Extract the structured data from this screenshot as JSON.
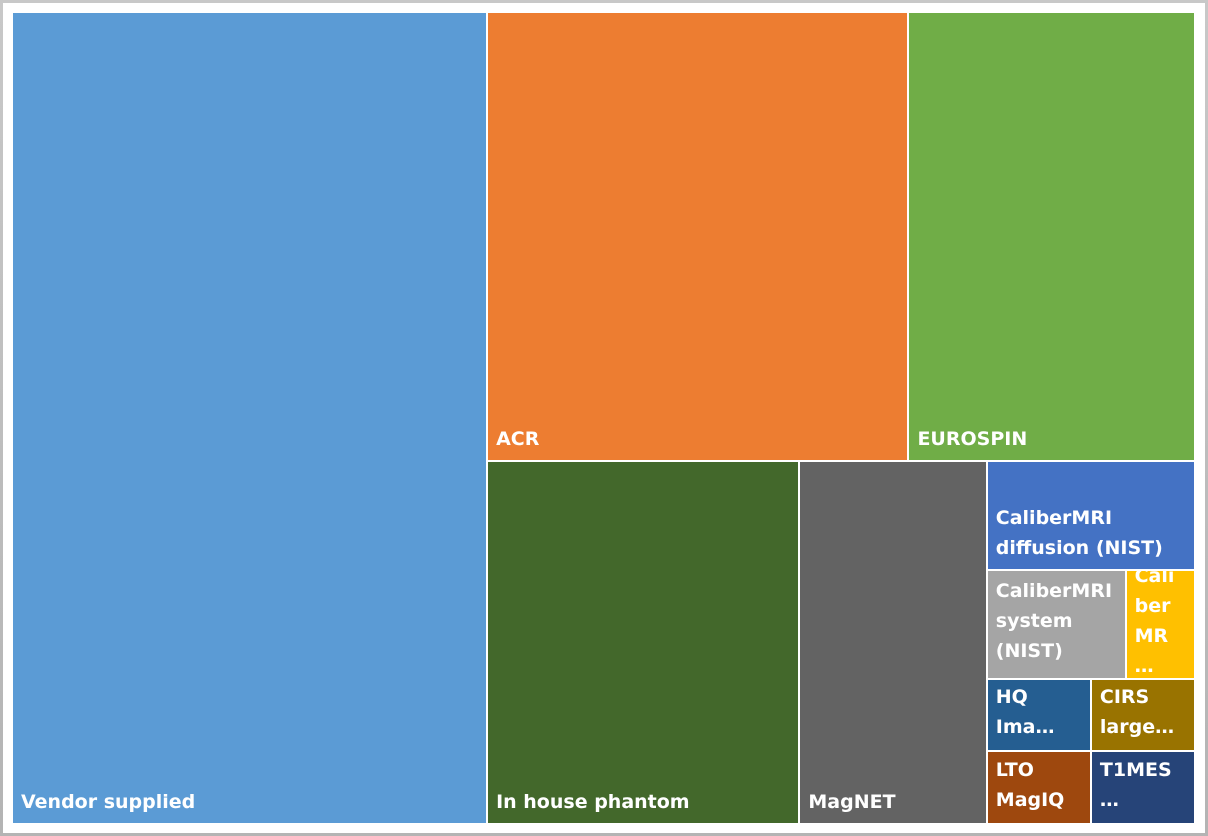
{
  "chart_data": {
    "type": "treemap",
    "categories": [
      "Vendor supplied",
      "ACR",
      "EUROSPIN",
      "In house phantom",
      "MagNET",
      "CaliberMRI diffusion (NIST)",
      "CaliberMRI system (NIST)",
      "CaliberMR…",
      "HQ Ima…",
      "LTO MagIQ",
      "CIRS large…",
      "T1MES…"
    ],
    "values": [
      51,
      25,
      17,
      15,
      9,
      3,
      2,
      1,
      1,
      1,
      1,
      1
    ],
    "colors": [
      "#5b9bd5",
      "#ed7d31",
      "#70ad47",
      "#43682b",
      "#636363",
      "#4472c4",
      "#a5a5a5",
      "#ffc000",
      "#255e91",
      "#9e480e",
      "#997300",
      "#264478"
    ]
  }
}
